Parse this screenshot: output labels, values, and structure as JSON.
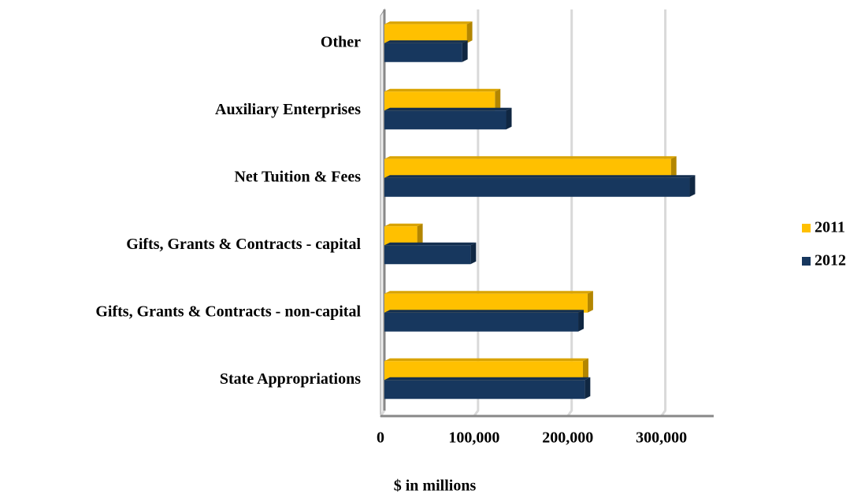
{
  "chart_data": {
    "type": "bar",
    "orientation": "horizontal",
    "categories": [
      "State Appropriations",
      "Gifts, Grants & Contracts - non-capital",
      "Gifts, Grants & Contracts - capital",
      "Net Tuition & Fees",
      "Auxiliary Enterprises",
      "Other"
    ],
    "series": [
      {
        "name": "2011",
        "color": "#FFC000",
        "values": [
          212000,
          217000,
          35000,
          306000,
          118000,
          88000
        ]
      },
      {
        "name": "2012",
        "color": "#17375E",
        "values": [
          214000,
          207000,
          92000,
          326000,
          130000,
          83000
        ]
      }
    ],
    "xlabel": "$ in millions",
    "xlim": [
      0,
      350000
    ],
    "xticks": [
      0,
      {
        "value": 100000,
        "label": "100,000"
      },
      {
        "value": 200000,
        "label": "200,000"
      },
      {
        "value": 300000,
        "label": "300,000"
      }
    ],
    "grid": true,
    "legend": "right"
  }
}
